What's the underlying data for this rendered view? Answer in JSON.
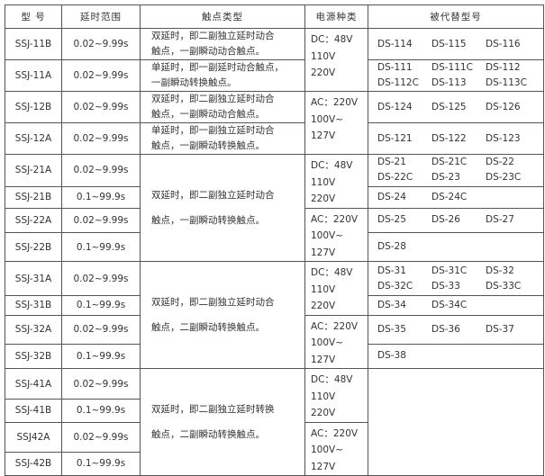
{
  "header": [
    "型 号",
    "延时范围",
    "触点类型",
    "电源种类",
    "被代替型号"
  ],
  "rows": [
    {
      "model": "SSJ-11B",
      "delay": "0.02~9.99s",
      "replaced": [
        "DS-114",
        "DS-115",
        "DS-116"
      ]
    },
    {
      "model": "SSJ-11A",
      "delay": "0.02~9.99s",
      "replaced": [
        "DS-111",
        "DS-111C",
        "DS-112",
        "DS-112C",
        "DS-113",
        "DS-113C"
      ]
    },
    {
      "model": "SSJ-12B",
      "delay": "0.02~9.99s",
      "replaced": [
        "DS-124",
        "DS-125",
        "DS-126"
      ]
    },
    {
      "model": "SSJ-12A",
      "delay": "0.02~9.99s",
      "replaced": [
        "DS-121",
        "DS-122",
        "DS-123"
      ]
    },
    {
      "model": "SSJ-21A",
      "delay": "0.02~9.99s",
      "replaced": [
        "DS-21",
        "DS-21C",
        "DS-22",
        "DS-22C",
        "DS-23",
        "DS-23C"
      ]
    },
    {
      "model": "SSJ-21B",
      "delay": "0.1~99.9s",
      "replaced": [
        "DS-24",
        "DS-24C"
      ]
    },
    {
      "model": "SSJ-22A",
      "delay": "0.02~9.99s",
      "replaced": [
        "DS-25",
        "DS-26",
        "DS-27"
      ]
    },
    {
      "model": "SSJ-22B",
      "delay": "0.1~99.9s",
      "replaced": [
        "DS-28"
      ]
    },
    {
      "model": "SSJ-31A",
      "delay": "0.02~9.99s",
      "replaced": [
        "DS-31",
        "DS-31C",
        "DS-32",
        "DS-32C",
        "DS-33",
        "DS-33C"
      ]
    },
    {
      "model": "SSJ-31B",
      "delay": "0.1~99.9s",
      "replaced": [
        "DS-34",
        "DS-34C"
      ]
    },
    {
      "model": "SSJ-32A",
      "delay": "0.02~9.99s",
      "replaced": [
        "DS-35",
        "DS-36",
        "DS-37"
      ]
    },
    {
      "model": "SSJ-32B",
      "delay": "0.1~99.9s",
      "replaced": [
        "DS-38"
      ]
    },
    {
      "model": "SSJ-41A",
      "delay": "0.02~9.99s",
      "replaced": []
    },
    {
      "model": "SSJ-41B",
      "delay": "0.1~99.9s"
    },
    {
      "model": "SSJ42A",
      "delay": "0.02~9.99s"
    },
    {
      "model": "SSJ-42B",
      "delay": "0.1~99.9s"
    }
  ],
  "contacts": [
    {
      "start": 0,
      "span": 1,
      "lines": [
        "双延时，即二副独立延时动合",
        "触点，一副瞬动动合触点。"
      ]
    },
    {
      "start": 1,
      "span": 1,
      "lines": [
        "单延时，即一副延时动合触点，",
        "一副瞬动转换触点。"
      ]
    },
    {
      "start": 2,
      "span": 1,
      "lines": [
        "双延时，即二副独立延时动合",
        "触点，一副瞬动动合触点。"
      ]
    },
    {
      "start": 3,
      "span": 1,
      "lines": [
        "单延时，即一副独立延时动合",
        "触点，一副瞬动转换触点。"
      ]
    },
    {
      "start": 4,
      "span": 4,
      "lines": [
        "双延时，即二副独立延时动合",
        "触点，一副瞬动转换触点。"
      ]
    },
    {
      "start": 8,
      "span": 4,
      "lines": [
        "双延时，即二副独立延时动合",
        "触点，二副瞬动转换触点。"
      ]
    },
    {
      "start": 12,
      "span": 4,
      "lines": [
        "双延时，即二副独立延时转换",
        "触点，二副瞬动转换触点。"
      ]
    }
  ],
  "power": [
    {
      "start": 0,
      "lines": [
        "DC：48V",
        "110V",
        "220V"
      ]
    },
    {
      "start": 2,
      "lines": [
        "AC：220V",
        "100V~",
        "127V"
      ]
    },
    {
      "start": 4,
      "lines": [
        "DC：48V",
        "110V",
        "220V"
      ]
    },
    {
      "start": 6,
      "lines": [
        "AC：220V",
        "100V~",
        "127V"
      ]
    },
    {
      "start": 8,
      "lines": [
        "DC：48V",
        "110V",
        "220V"
      ]
    },
    {
      "start": 10,
      "lines": [
        "AC：220V",
        "100V~",
        "127V"
      ]
    },
    {
      "start": 12,
      "lines": [
        "DC：48V",
        "110V",
        "220V"
      ]
    },
    {
      "start": 14,
      "lines": [
        "AC：220V",
        "100V~",
        "127V"
      ]
    }
  ],
  "replaced_empty_span_start": 12
}
